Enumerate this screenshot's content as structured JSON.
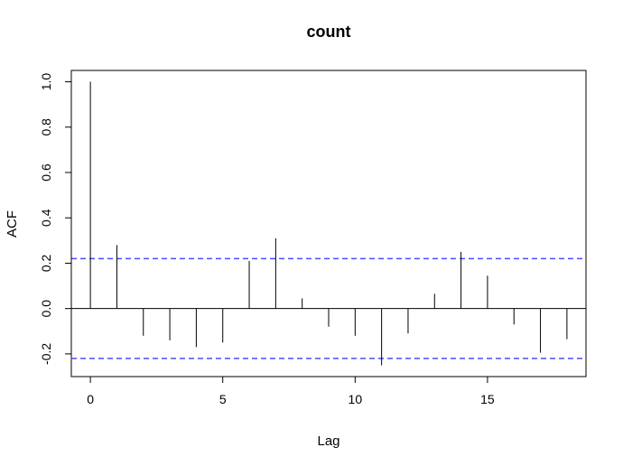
{
  "chart_data": {
    "type": "bar",
    "title": "count",
    "xlabel": "Lag",
    "ylabel": "ACF",
    "x": [
      0,
      1,
      2,
      3,
      4,
      5,
      6,
      7,
      8,
      9,
      10,
      11,
      12,
      13,
      14,
      15,
      16,
      17,
      18
    ],
    "values": [
      1.0,
      0.28,
      -0.12,
      -0.14,
      -0.17,
      -0.15,
      0.21,
      0.31,
      0.045,
      -0.08,
      -0.12,
      -0.25,
      -0.11,
      0.065,
      0.25,
      0.145,
      -0.07,
      -0.195,
      -0.135
    ],
    "xlim": [
      -0.72,
      18.72
    ],
    "ylim": [
      -0.3,
      1.05
    ],
    "x_ticks": [
      0,
      5,
      10,
      15
    ],
    "y_ticks": [
      -0.2,
      0.0,
      0.2,
      0.4,
      0.6,
      0.8,
      1.0
    ],
    "x_tick_labels": [
      "0",
      "5",
      "10",
      "15"
    ],
    "y_tick_labels": [
      "-0.2",
      "0.0",
      "0.2",
      "0.4",
      "0.6",
      "0.8",
      "1.0"
    ],
    "confidence_bound": 0.22,
    "colors": {
      "spike": "#000000",
      "zero_line": "#000000",
      "confidence": "#4d4dff",
      "frame": "#000000"
    },
    "grid": false,
    "legend": "none"
  }
}
